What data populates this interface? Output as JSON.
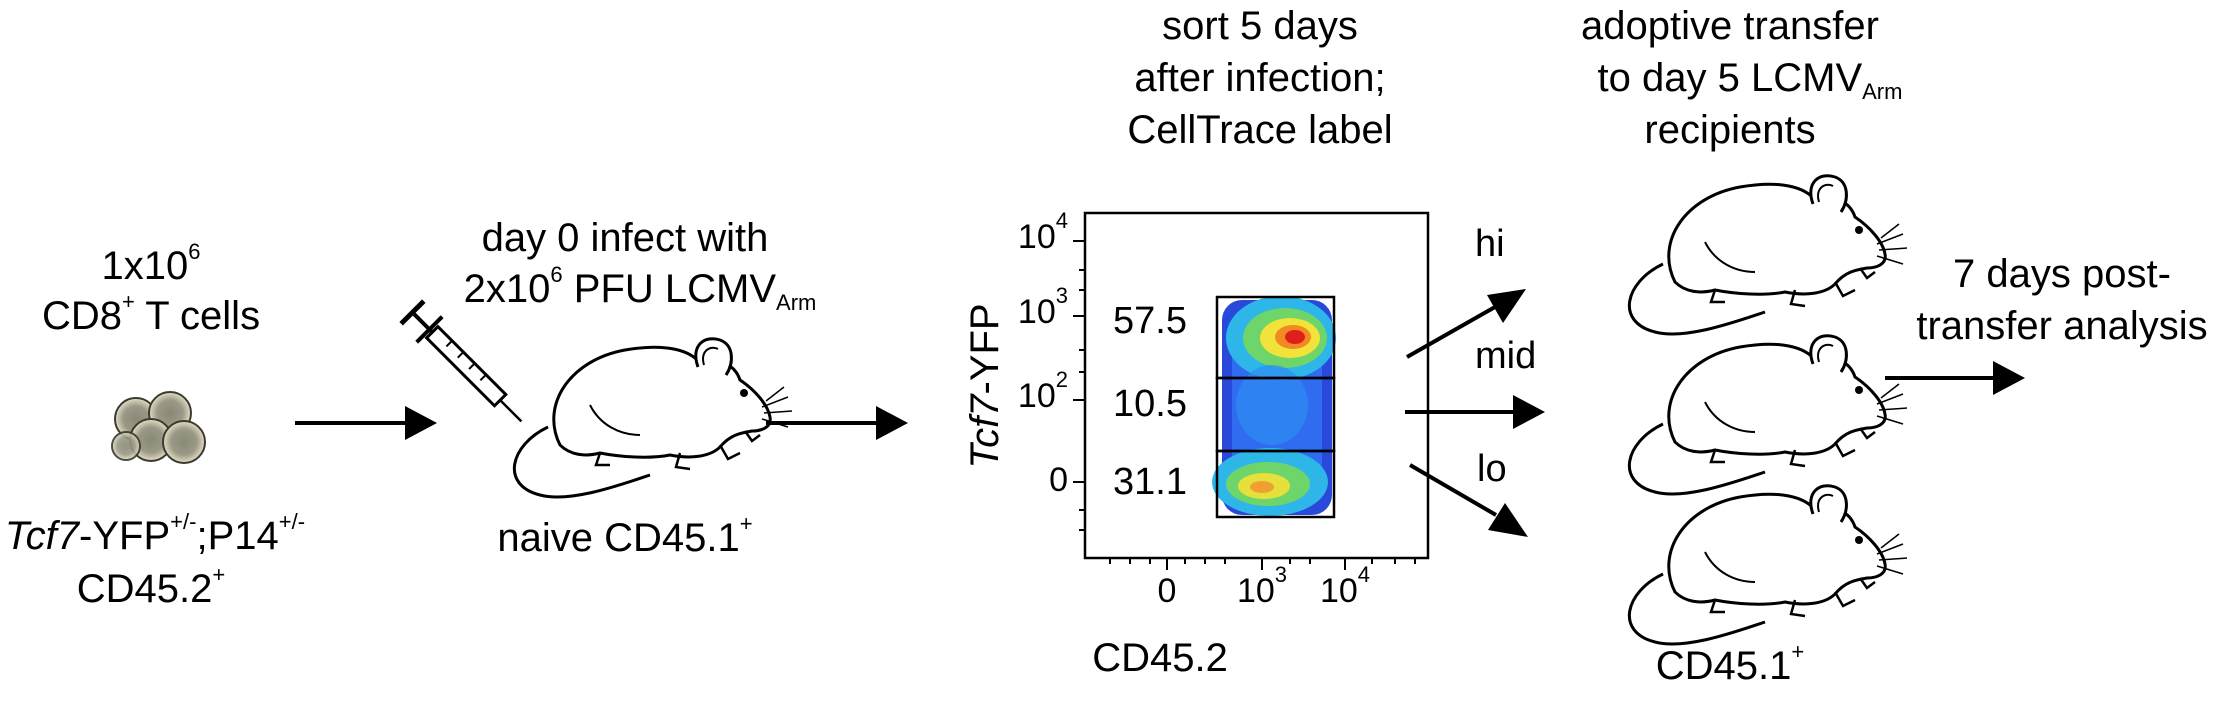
{
  "step1": {
    "count_base": "1x10",
    "count_exp": "6",
    "cells_a": "CD8",
    "cells_sup": "+",
    "cells_b": " T cells",
    "genotype_italic": "Tcf7",
    "genotype_a": "-YFP",
    "genotype_sup1": "+/-",
    "genotype_b": ";P14",
    "genotype_sup2": "+/-",
    "marker": "CD45.2",
    "marker_sup": "+"
  },
  "step2": {
    "line1": "day 0 infect with",
    "line2_a": "2x10",
    "line2_exp": "6",
    "line2_b": " PFU LCMV",
    "line2_sub": "Arm",
    "bottom": "naive CD45.1",
    "bottom_sup": "+"
  },
  "step3": {
    "line1": "sort 5 days",
    "line2": "after infection;",
    "line3": "CellTrace label",
    "plot": {
      "y_label_italic": "Tcf7",
      "y_label_b": "-YFP",
      "x_label": "CD45.2",
      "y_ticks": [
        {
          "base": "10",
          "exp": "4"
        },
        {
          "base": "10",
          "exp": "3"
        },
        {
          "base": "10",
          "exp": "2"
        },
        {
          "base": "0",
          "exp": ""
        }
      ],
      "x_ticks": [
        {
          "base": "0",
          "exp": ""
        },
        {
          "base": "10",
          "exp": "3"
        },
        {
          "base": "10",
          "exp": "4"
        }
      ],
      "gates": [
        {
          "name": "hi",
          "percent": "57.5"
        },
        {
          "name": "mid",
          "percent": "10.5"
        },
        {
          "name": "lo",
          "percent": "31.1"
        }
      ]
    }
  },
  "step4": {
    "line1": "adoptive transfer",
    "line2_a": "to day 5 LCMV",
    "line2_sub": "Arm",
    "line3": "recipients",
    "bottom": "CD45.1",
    "bottom_sup": "+"
  },
  "step5": {
    "line1": "7 days post-",
    "line2": "transfer analysis"
  },
  "colors": {
    "ink": "#000000",
    "cell_fill": "#a3a090",
    "cell_inner": "#807e6e",
    "cell_edge": "#3a3a30"
  }
}
